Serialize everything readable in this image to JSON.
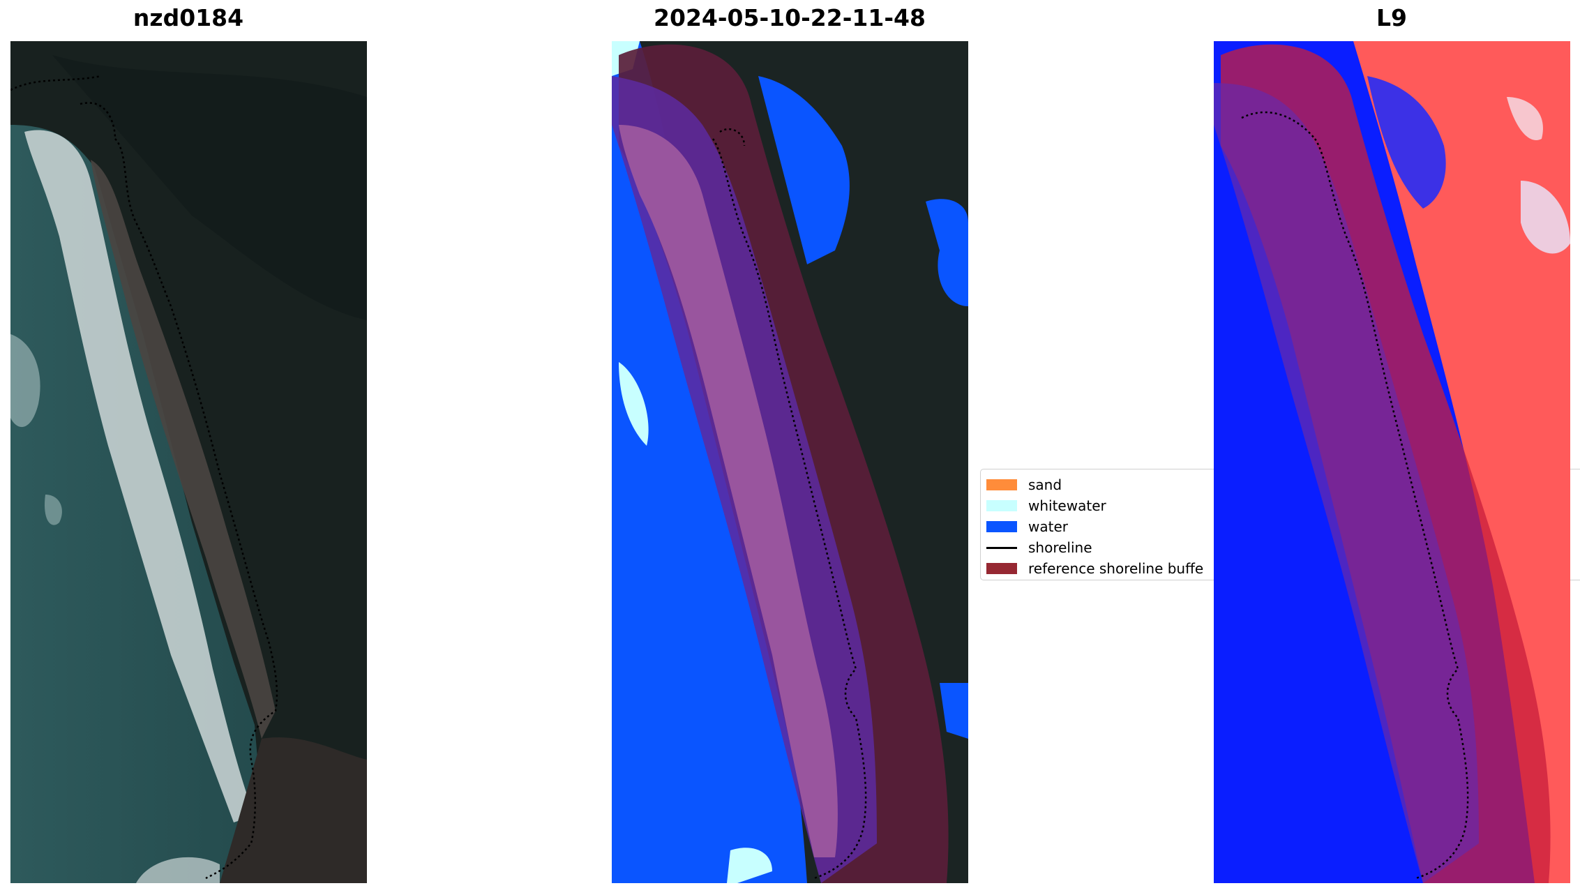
{
  "panels": [
    {
      "title": "nzd0184"
    },
    {
      "title": "2024-05-10-22-11-48"
    },
    {
      "title": "L9"
    }
  ],
  "legend": {
    "items": [
      {
        "label": "sand",
        "type": "patch",
        "color": "#ff8c3a"
      },
      {
        "label": "whitewater",
        "type": "patch",
        "color": "#c8ffff"
      },
      {
        "label": "water",
        "type": "patch",
        "color": "#0a55ff"
      },
      {
        "label": "shoreline",
        "type": "line",
        "color": "#000000"
      },
      {
        "label": "reference shoreline buffe",
        "type": "patch",
        "color": "#962832"
      }
    ]
  }
}
